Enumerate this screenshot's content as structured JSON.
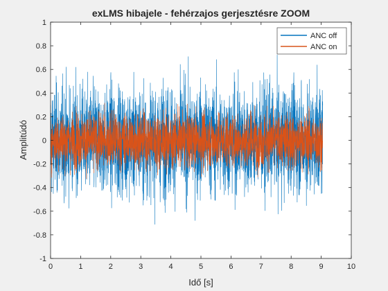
{
  "chart_data": {
    "type": "line",
    "title": "exLMS hibajele - fehérzajos gerjesztésre ZOOM",
    "xlabel": "Idő [s]",
    "ylabel": "Amplitúdó",
    "xlim": [
      0,
      10
    ],
    "ylim": [
      -1,
      1
    ],
    "xticks": [
      "0",
      "1",
      "2",
      "3",
      "4",
      "5",
      "6",
      "7",
      "8",
      "9",
      "10"
    ],
    "yticks": [
      "-1",
      "-0.8",
      "-0.6",
      "-0.4",
      "-0.2",
      "0",
      "0.2",
      "0.4",
      "0.6",
      "0.8",
      "1"
    ],
    "grid": false,
    "legend_position": "top-right",
    "signal_end_time": 9.05,
    "series": [
      {
        "name": "ANC off",
        "color": "#0072BD",
        "envelope_typical": [
          -0.45,
          0.45
        ],
        "envelope_peak": [
          -1.0,
          1.0
        ]
      },
      {
        "name": "ANC on",
        "color": "#D95319",
        "envelope_typical": [
          -0.23,
          0.23
        ],
        "envelope_peak": [
          -0.35,
          0.35
        ]
      }
    ]
  }
}
